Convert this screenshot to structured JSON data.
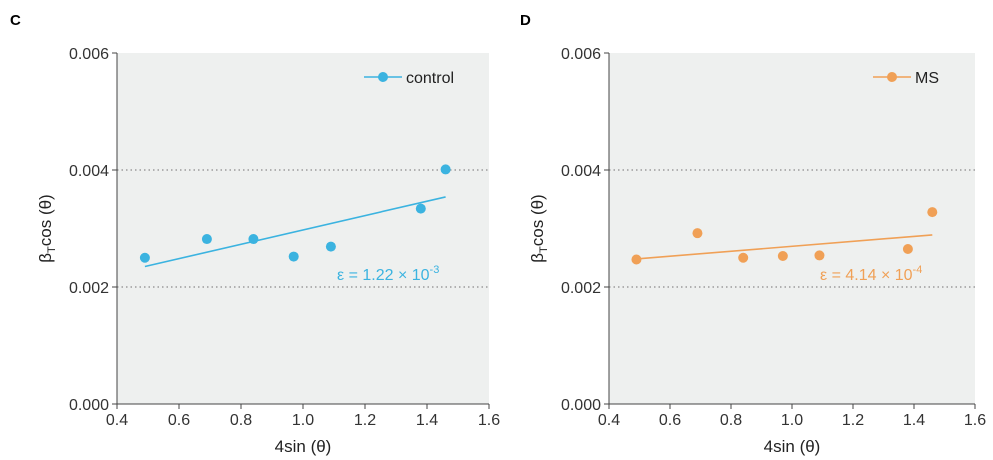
{
  "chart_data": [
    {
      "panel": "C",
      "type": "scatter",
      "xlabel": "4sin (θ)",
      "ylabel": "βTcos (θ)",
      "ylabel_main": "β",
      "ylabel_sub": "T",
      "ylabel_rest": "cos (θ)",
      "xlim": [
        0.4,
        1.6
      ],
      "ylim": [
        0.0,
        0.006
      ],
      "xticks": [
        "0.4",
        "0.6",
        "0.8",
        "1.0",
        "1.2",
        "1.4",
        "1.6"
      ],
      "yticks": [
        "0.000",
        "0.002",
        "0.004",
        "0.006"
      ],
      "grid": "horizontal dotted at 0.002 and 0.004",
      "legend_position": "top-right",
      "series": [
        {
          "name": "control",
          "color": "#3bb3e0",
          "x": [
            0.49,
            0.69,
            0.84,
            0.97,
            1.09,
            1.38,
            1.46
          ],
          "y": [
            0.0025,
            0.00282,
            0.00282,
            0.00252,
            0.00269,
            0.00334,
            0.00401
          ]
        }
      ],
      "fit_line": {
        "x": [
          0.49,
          1.46
        ],
        "y": [
          0.00235,
          0.00354
        ]
      },
      "annotation": "ε = 1.22 × 10",
      "annotation_exp": "-3"
    },
    {
      "panel": "D",
      "type": "scatter",
      "xlabel": "4sin (θ)",
      "ylabel": "βTcos (θ)",
      "ylabel_main": "β",
      "ylabel_sub": "T",
      "ylabel_rest": "cos (θ)",
      "xlim": [
        0.4,
        1.6
      ],
      "ylim": [
        0.0,
        0.006
      ],
      "xticks": [
        "0.4",
        "0.6",
        "0.8",
        "1.0",
        "1.2",
        "1.4",
        "1.6"
      ],
      "yticks": [
        "0.000",
        "0.002",
        "0.004",
        "0.006"
      ],
      "grid": "horizontal dotted at 0.002 and 0.004",
      "legend_position": "top-right",
      "series": [
        {
          "name": "MS",
          "color": "#f0a056",
          "x": [
            0.49,
            0.69,
            0.84,
            0.97,
            1.09,
            1.38,
            1.46
          ],
          "y": [
            0.00247,
            0.00292,
            0.0025,
            0.00253,
            0.00254,
            0.00265,
            0.00328
          ]
        }
      ],
      "fit_line": {
        "x": [
          0.49,
          1.46
        ],
        "y": [
          0.00248,
          0.00289
        ]
      },
      "annotation": "ε = 4.14 × 10",
      "annotation_exp": "-4"
    }
  ]
}
